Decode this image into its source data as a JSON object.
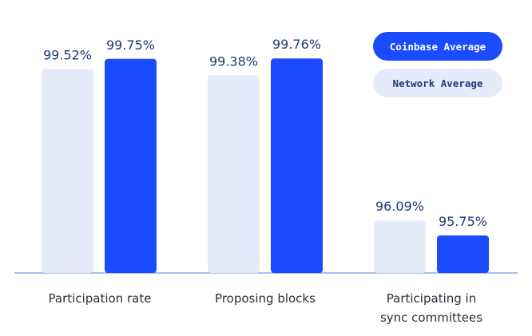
{
  "chart_data": {
    "type": "bar",
    "categories": [
      "Participation rate",
      "Proposing blocks",
      "Participating in sync committees"
    ],
    "category_lines": [
      [
        "Participation rate"
      ],
      [
        "Proposing blocks"
      ],
      [
        "Participating in",
        "sync committees"
      ]
    ],
    "series": [
      {
        "name": "Network Average",
        "color": "#e6ebfa",
        "values": [
          99.52,
          99.38,
          96.09
        ],
        "labels": [
          "99.52%",
          "99.38%",
          "96.09%"
        ]
      },
      {
        "name": "Coinbase Average",
        "color": "#1a4bff",
        "values": [
          99.75,
          99.76,
          95.75
        ],
        "labels": [
          "99.75%",
          "99.76%",
          "95.75%"
        ]
      }
    ],
    "ylim": [
      94.9,
      99.76
    ],
    "grid": false,
    "legend_placement": "top-right",
    "title": "",
    "xlabel": "",
    "ylabel": ""
  },
  "legend": {
    "coinbase": "Coinbase Average",
    "network": "Network Average"
  }
}
